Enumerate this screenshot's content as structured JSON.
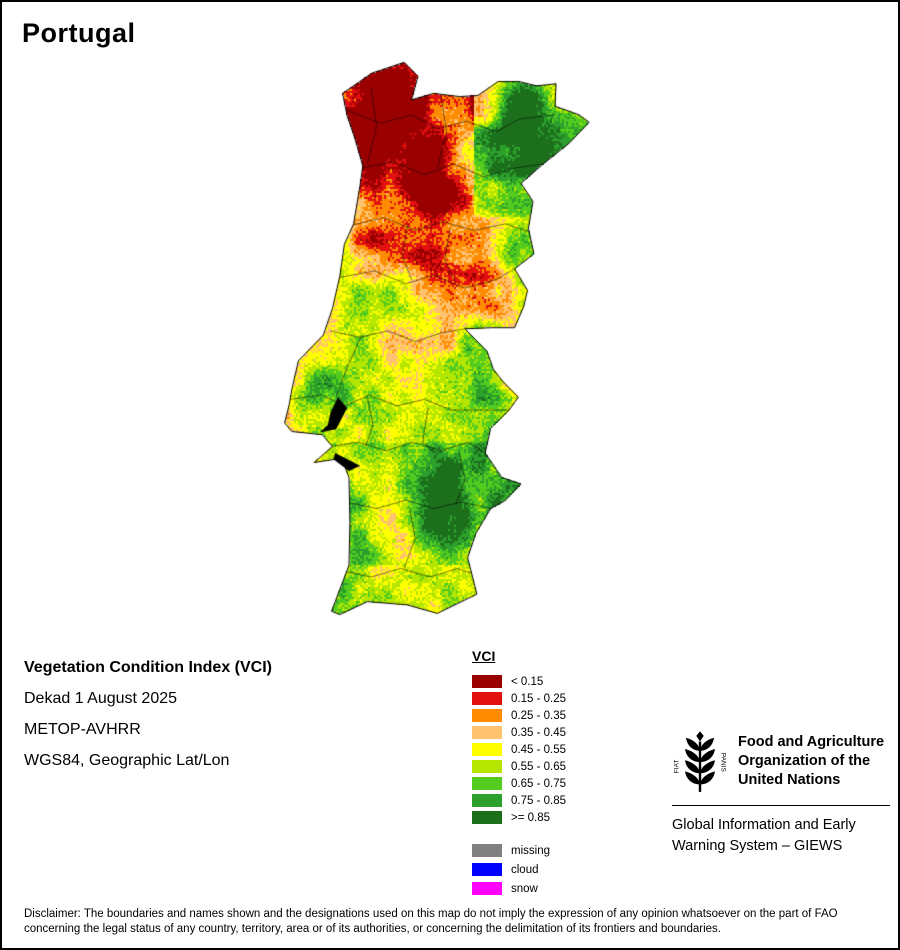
{
  "page": {
    "title": "Portugal"
  },
  "info": {
    "index_name": "Vegetation Condition Index (VCI)",
    "dekad": "Dekad 1 August 2025",
    "sensor": "METOP-AVHRR",
    "projection": "WGS84, Geographic Lat/Lon"
  },
  "legend": {
    "title": "VCI",
    "classes": [
      {
        "label": "< 0.15",
        "color": "#9B0000"
      },
      {
        "label": "0.15 - 0.25",
        "color": "#E31010"
      },
      {
        "label": "0.25 - 0.35",
        "color": "#FF8C00"
      },
      {
        "label": "0.35 - 0.45",
        "color": "#FFC26E"
      },
      {
        "label": "0.45 - 0.55",
        "color": "#FFFF00"
      },
      {
        "label": "0.55 - 0.65",
        "color": "#B4E600"
      },
      {
        "label": "0.65 - 0.75",
        "color": "#53CC1F"
      },
      {
        "label": "0.75 - 0.85",
        "color": "#2CA02C"
      },
      {
        "label": ">= 0.85",
        "color": "#1C701C"
      }
    ],
    "special": [
      {
        "label": "missing",
        "color": "#808080"
      },
      {
        "label": "cloud",
        "color": "#0000FF"
      },
      {
        "label": "snow",
        "color": "#FF00FF"
      }
    ]
  },
  "branding": {
    "logo_motto_left": "FIAT",
    "logo_motto_right": "PANIS",
    "org_lines": [
      "Food and Agriculture",
      "Organization of the",
      "United Nations"
    ],
    "giews_lines": [
      "Global Information and Early",
      "Warning System – GIEWS"
    ]
  },
  "map": {
    "region": "Portugal",
    "water_color": "#000000"
  },
  "disclaimer": "Disclaimer: The boundaries and names shown and the designations used on this map do not imply the expression of any opinion whatsoever on the part of FAO concerning the legal status of any country, territory, area or of its authorities, or concerning the delimitation of its frontiers and boundaries."
}
